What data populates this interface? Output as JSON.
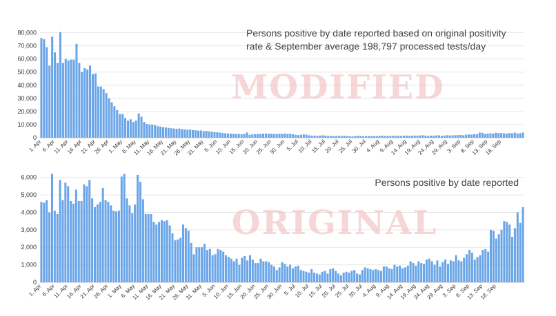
{
  "chart_data": [
    {
      "type": "bar",
      "title_lines": [
        "Persons positive by date reported based on original positivity",
        "rate & September average 198,797 processed tests/day"
      ],
      "watermark": "MODIFIED",
      "ylim": [
        0,
        85000
      ],
      "yticks": [
        0,
        10000,
        20000,
        30000,
        40000,
        50000,
        60000,
        70000,
        80000
      ],
      "ytick_labels": [
        "0",
        "10,000",
        "20,000",
        "30,000",
        "40,000",
        "50,000",
        "60,000",
        "70,000",
        "80,000"
      ],
      "grid": true,
      "x_start": "2020-04-01",
      "x_end": "2020-09-18",
      "xtick_labels": [
        "1. Apr",
        "6. Apr",
        "11. Apr",
        "16. Apr",
        "21. Apr",
        "26. Apr",
        "1. May",
        "6. May",
        "11. May",
        "16. May",
        "21. May",
        "26. May",
        "31. May",
        "5. Jun",
        "10. Jun",
        "15. Jun",
        "20. Jun",
        "25. Jun",
        "30. Jun",
        "5. Jul",
        "10. Jul",
        "15. Jul",
        "20. Jul",
        "25. Jul",
        "30. Jul",
        "4. Aug",
        "9. Aug",
        "14. Aug",
        "19. Aug",
        "24. Aug",
        "29. Aug",
        "3. Sep",
        "8. Sep",
        "13. Sep",
        "18. Sep"
      ],
      "bar_color": "#6aa5e8",
      "values": [
        76000,
        75000,
        69000,
        55000,
        77000,
        65000,
        57000,
        80500,
        57000,
        60000,
        59000,
        59500,
        59500,
        71500,
        57000,
        50000,
        53000,
        52000,
        55000,
        48500,
        49000,
        39000,
        39000,
        37000,
        34000,
        30000,
        27000,
        24000,
        21000,
        18000,
        18000,
        15000,
        13000,
        14000,
        12000,
        13000,
        18500,
        16000,
        12000,
        10500,
        10000,
        10000,
        9500,
        8800,
        8500,
        8000,
        7800,
        7500,
        7200,
        7000,
        6800,
        7000,
        6500,
        6300,
        6000,
        6200,
        5800,
        5700,
        5400,
        5500,
        5000,
        5200,
        4800,
        4600,
        4300,
        4100,
        3900,
        3600,
        3400,
        3200,
        3100,
        3000,
        2800,
        2900,
        2600,
        2800,
        4000,
        2200,
        2600,
        2700,
        2900,
        2800,
        3100,
        3200,
        3000,
        3100,
        2800,
        2900,
        3000,
        2900,
        3100,
        2800,
        3000,
        2600,
        2200,
        2000,
        2200,
        2500,
        2300,
        1800,
        1500,
        1600,
        1300,
        1600,
        1800,
        1500,
        1400,
        1300,
        1100,
        1300,
        1400,
        1300,
        1500,
        1200,
        1100,
        1000,
        1300,
        1400,
        1300,
        1100,
        1200,
        1100,
        1200,
        1300,
        1200,
        1400,
        1500,
        1200,
        1300,
        1400,
        1500,
        1300,
        1500,
        1400,
        1500,
        1600,
        1400,
        1500,
        1600,
        1500,
        1700,
        1800,
        1500,
        1400,
        1600,
        1500,
        1700,
        1800,
        1500,
        1600,
        1900,
        1700,
        1800,
        1900,
        2000,
        2100,
        1900,
        2300,
        2500,
        2400,
        2700,
        2600,
        3900,
        3800,
        2900,
        3100,
        3400,
        3200,
        3800,
        3500,
        3600,
        3300,
        3100,
        3500,
        3400,
        3900,
        3200,
        3400,
        4000
      ]
    },
    {
      "type": "bar",
      "title": "Persons positive by date reported",
      "watermark": "ORIGINAL",
      "ylim": [
        0,
        6500
      ],
      "yticks": [
        0,
        1000,
        2000,
        3000,
        4000,
        5000,
        6000
      ],
      "ytick_labels": [
        "0",
        "1,000",
        "2,000",
        "3,000",
        "4,000",
        "5,000",
        "6,000"
      ],
      "grid": true,
      "x_start": "2020-04-01",
      "x_end": "2020-09-18",
      "xtick_labels": [
        "1. Apr",
        "6. Apr",
        "11. Apr",
        "16. Apr",
        "21. Apr",
        "26. Apr",
        "1. May",
        "6. May",
        "11. May",
        "16. May",
        "21. May",
        "26. May",
        "31. May",
        "5. Jun",
        "10. Jun",
        "15. Jun",
        "20. Jun",
        "25. Jun",
        "30. Jun",
        "5. Jul",
        "10. Jul",
        "15. Jul",
        "20. Jul",
        "25. Jul",
        "30. Jul",
        "4. Aug",
        "9. Aug",
        "14. Aug",
        "19. Aug",
        "24. Aug",
        "29. Aug",
        "3. Sep",
        "8. Sep",
        "13. Sep",
        "18. Sep"
      ],
      "bar_color": "#6aa5e8",
      "values": [
        4600,
        4550,
        4700,
        4000,
        6200,
        4100,
        3900,
        5850,
        4700,
        5700,
        5500,
        4650,
        4500,
        5300,
        4650,
        4650,
        5600,
        5500,
        5850,
        4800,
        4300,
        4450,
        4600,
        5400,
        4700,
        4600,
        4400,
        4100,
        4050,
        4100,
        6050,
        6200,
        4800,
        4400,
        3950,
        4450,
        6150,
        5750,
        4750,
        3900,
        3900,
        3900,
        3450,
        3300,
        3450,
        3550,
        3500,
        3550,
        3250,
        2800,
        2400,
        2450,
        2550,
        3300,
        3100,
        2950,
        2250,
        1600,
        2000,
        2000,
        2000,
        2200,
        1850,
        1900,
        1550,
        1600,
        1900,
        1850,
        1750,
        1550,
        1450,
        1350,
        1200,
        1350,
        1000,
        1400,
        1500,
        1250,
        1550,
        1300,
        1100,
        1100,
        1350,
        1200,
        1200,
        1150,
        1000,
        900,
        700,
        850,
        1150,
        1050,
        900,
        1000,
        800,
        900,
        950,
        700,
        650,
        600,
        550,
        750,
        550,
        500,
        450,
        600,
        650,
        500,
        750,
        800,
        650,
        500,
        400,
        550,
        600,
        550,
        650,
        700,
        500,
        450,
        700,
        850,
        800,
        750,
        700,
        750,
        700,
        650,
        900,
        900,
        800,
        750,
        1000,
        900,
        950,
        800,
        850,
        950,
        1200,
        1100,
        950,
        1200,
        1100,
        1050,
        1300,
        1350,
        1200,
        1000,
        1250,
        900,
        1150,
        1300,
        1050,
        1250,
        1200,
        1550,
        1250,
        1200,
        1400,
        1600,
        1850,
        1700,
        1300,
        1450,
        1550,
        1850,
        1900,
        1750,
        3000,
        2950,
        2500,
        2750,
        3000,
        3500,
        3450,
        3300,
        2600,
        3100,
        4000,
        3400,
        4300
      ]
    }
  ]
}
